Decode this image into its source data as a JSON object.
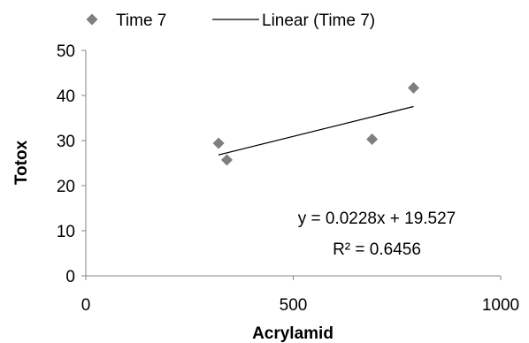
{
  "chart_data": {
    "type": "scatter",
    "xlabel": "Acrylamid",
    "ylabel": "Totox",
    "xlim": [
      0,
      1000
    ],
    "ylim": [
      0,
      50
    ],
    "xticks": [
      0,
      500,
      1000
    ],
    "yticks": [
      0,
      10,
      20,
      30,
      40,
      50
    ],
    "xtick_labels": [
      "0",
      "500",
      "1000"
    ],
    "ytick_labels": [
      "0",
      "10",
      "20",
      "30",
      "40",
      "50"
    ],
    "grid": false,
    "legend_position": "top",
    "series": [
      {
        "name": "Time 7",
        "marker": "diamond",
        "color": "#7f7f7f",
        "points": [
          {
            "x": 320,
            "y": 29.4
          },
          {
            "x": 340,
            "y": 25.7
          },
          {
            "x": 690,
            "y": 30.3
          },
          {
            "x": 790,
            "y": 41.7
          }
        ]
      }
    ],
    "trendline": {
      "name": "Linear (Time 7)",
      "type": "linear",
      "slope": 0.0228,
      "intercept": 19.527,
      "x_range": [
        320,
        790
      ],
      "color": "#000000",
      "equation_label": "y = 0.0228x + 19.527",
      "r2_label": "R² = 0.6456"
    }
  }
}
